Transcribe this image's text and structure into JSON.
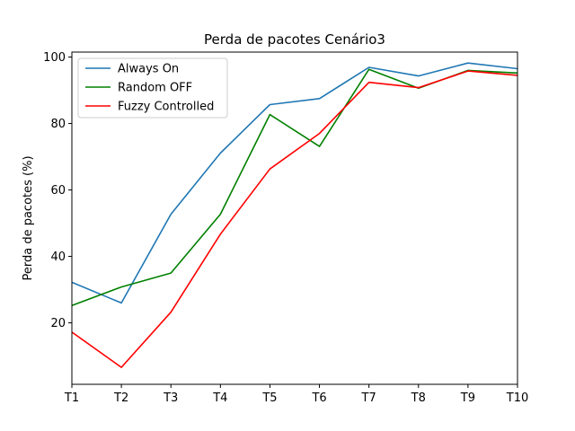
{
  "chart_data": {
    "type": "line",
    "title": "Perda de pacotes Cenário3",
    "xlabel": "",
    "ylabel": "Perda de pacotes (%)",
    "categories": [
      "T1",
      "T2",
      "T3",
      "T4",
      "T5",
      "T6",
      "T7",
      "T8",
      "T9",
      "T10"
    ],
    "ylim": [
      1.5,
      101.5
    ],
    "yticks": [
      20,
      40,
      60,
      80,
      100
    ],
    "yticks_text": [
      "20",
      "40",
      "60",
      "80",
      "100"
    ],
    "grid": false,
    "legend_position": "top-left",
    "series": [
      {
        "name": "Always On",
        "color": "#1f77b4",
        "values": [
          32.2,
          26.0,
          52.7,
          71.1,
          85.7,
          87.5,
          96.9,
          94.3,
          98.2,
          96.5
        ]
      },
      {
        "name": "Random OFF",
        "color": "#008000",
        "values": [
          25.2,
          30.8,
          35.0,
          52.7,
          82.7,
          73.1,
          96.3,
          90.6,
          96.0,
          95.2
        ]
      },
      {
        "name": "Fuzzy Controlled",
        "color": "#ff0000",
        "values": [
          17.2,
          6.6,
          23.2,
          46.7,
          66.3,
          77.0,
          92.4,
          90.8,
          95.8,
          94.5
        ]
      }
    ]
  }
}
